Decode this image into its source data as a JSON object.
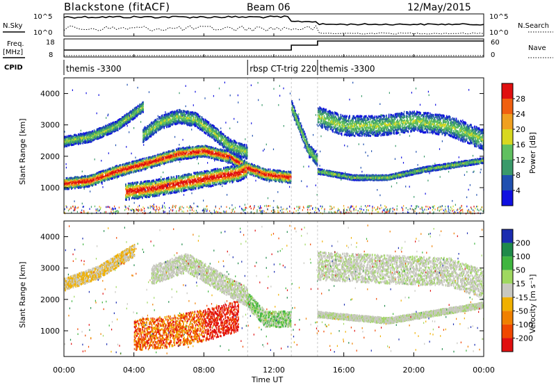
{
  "header": {
    "title": "Blackstone (fitACF)",
    "beam": "Beam 06",
    "date": "12/May/2015"
  },
  "top_panels": {
    "nsky_label": "N.Sky",
    "nsearch_label": "N.Search",
    "freq_label": "Freq.",
    "freq_unit": "[MHz]",
    "nave_label": "Nave",
    "cpid_label": "CPID",
    "count_axis": {
      "top": "10^5",
      "bottom": "10^0"
    },
    "freq_axis": {
      "top": "18",
      "bottom": "8"
    },
    "nave_axis": {
      "top": "60",
      "bottom": "0"
    },
    "nave_values": [
      {
        "from": 0,
        "to": 13.0,
        "value": 18
      },
      {
        "from": 13.0,
        "to": 14.5,
        "value": 36
      },
      {
        "from": 14.5,
        "to": 24,
        "value": 48
      }
    ],
    "cpid_segments": [
      {
        "start": 0.0,
        "label": "themis -3300"
      },
      {
        "start": 10.5,
        "label": "rbsp CT-trig 220"
      },
      {
        "start": 14.5,
        "label": "themis -3300"
      }
    ]
  },
  "axes": {
    "xlabel": "Time UT",
    "ylabel": "Slant Range [km]",
    "x_ticks": [
      "00:00",
      "04:00",
      "08:00",
      "12:00",
      "16:00",
      "20:00",
      "00:00"
    ],
    "y_ticks": [
      "1000",
      "2000",
      "3000",
      "4000"
    ]
  },
  "colorbars": {
    "power": {
      "label": "Power [dB]",
      "ticks": [
        "4",
        "8",
        "12",
        "16",
        "20",
        "24",
        "28"
      ],
      "colors": [
        "#1010e0",
        "#2050b0",
        "#3a9a6a",
        "#60c060",
        "#d8d820",
        "#f0a020",
        "#f06010",
        "#e01010"
      ]
    },
    "velocity": {
      "label": "Velocity [m s⁻¹]",
      "ticks": [
        "200",
        "100",
        "50",
        "15",
        "-15",
        "-50",
        "-100",
        "-200"
      ],
      "colors": [
        "#1a2cb0",
        "#1f8a4a",
        "#3fb53f",
        "#9fd860",
        "#c8c8c0",
        "#f0b000",
        "#f08000",
        "#f04800",
        "#e01010"
      ]
    }
  },
  "chart_data": {
    "type": "heatmap",
    "x_range_hours": [
      0,
      24
    ],
    "y_range_km": [
      180,
      4500
    ],
    "power_bands": [
      {
        "name": "",
        "points": [
          [
            0.0,
            1150
          ],
          [
            1.5,
            1250
          ],
          [
            3.0,
            1550
          ],
          [
            5.0,
            1850
          ],
          [
            6.5,
            2100
          ],
          [
            8.0,
            2200
          ],
          [
            9.5,
            2000
          ],
          [
            10.5,
            1650
          ],
          [
            11.5,
            1450
          ],
          [
            13.0,
            1350
          ]
        ],
        "thickness": 180
      },
      {
        "name": "",
        "points": [
          [
            3.5,
            900
          ],
          [
            5.0,
            1000
          ],
          [
            6.0,
            1100
          ],
          [
            7.0,
            1200
          ],
          [
            8.0,
            1300
          ],
          [
            9.0,
            1400
          ],
          [
            10.0,
            1500
          ],
          [
            10.5,
            1650
          ]
        ],
        "thickness": 260
      },
      {
        "name": "",
        "points": [
          [
            0.0,
            2500
          ],
          [
            1.5,
            2650
          ],
          [
            3.0,
            3000
          ],
          [
            4.0,
            3400
          ],
          [
            4.5,
            3600
          ]
        ],
        "thickness": 160
      },
      {
        "name": "",
        "points": [
          [
            4.5,
            2700
          ],
          [
            5.5,
            3100
          ],
          [
            6.5,
            3300
          ],
          [
            7.5,
            3200
          ],
          [
            8.5,
            2800
          ],
          [
            9.5,
            2350
          ],
          [
            10.5,
            2150
          ]
        ],
        "thickness": 220
      },
      {
        "name": "",
        "points": [
          [
            14.5,
            3300
          ],
          [
            16.0,
            3000
          ],
          [
            18.0,
            3000
          ],
          [
            20.0,
            3150
          ],
          [
            22.0,
            3000
          ],
          [
            24.0,
            2550
          ]
        ],
        "thickness": 320
      },
      {
        "name": "",
        "points": [
          [
            14.5,
            1550
          ],
          [
            16.5,
            1350
          ],
          [
            18.5,
            1350
          ],
          [
            20.5,
            1600
          ],
          [
            24.0,
            1900
          ]
        ],
        "thickness": 80
      },
      {
        "name": "",
        "points": [
          [
            13.0,
            3600
          ],
          [
            14.0,
            2200
          ],
          [
            14.5,
            1900
          ]
        ],
        "thickness": 200
      }
    ],
    "velocity_regions": [
      {
        "name": "",
        "points": [
          [
            4.0,
            900
          ],
          [
            6.0,
            1000
          ],
          [
            8.0,
            1200
          ],
          [
            10.0,
            1500
          ]
        ],
        "thickness": 500,
        "class": "negative"
      },
      {
        "name": "",
        "points": [
          [
            0.0,
            2500
          ],
          [
            2.0,
            2900
          ],
          [
            4.0,
            3600
          ]
        ],
        "thickness": 200,
        "class": "negative-small"
      },
      {
        "name": "",
        "points": [
          [
            5.0,
            2800
          ],
          [
            7.0,
            3200
          ],
          [
            9.5,
            2400
          ],
          [
            10.5,
            2100
          ]
        ],
        "thickness": 300,
        "class": "near-zero"
      },
      {
        "name": "",
        "points": [
          [
            10.5,
            2000
          ],
          [
            11.5,
            1400
          ],
          [
            13.0,
            1400
          ]
        ],
        "thickness": 250,
        "class": "positive-small"
      },
      {
        "name": "",
        "points": [
          [
            14.5,
            3100
          ],
          [
            18.0,
            3000
          ],
          [
            22.0,
            2900
          ],
          [
            24.0,
            2500
          ]
        ],
        "thickness": 450,
        "class": "near-zero"
      },
      {
        "name": "",
        "points": [
          [
            14.5,
            1550
          ],
          [
            18.5,
            1350
          ],
          [
            24.0,
            1850
          ]
        ],
        "thickness": 90,
        "class": "near-zero"
      }
    ]
  }
}
